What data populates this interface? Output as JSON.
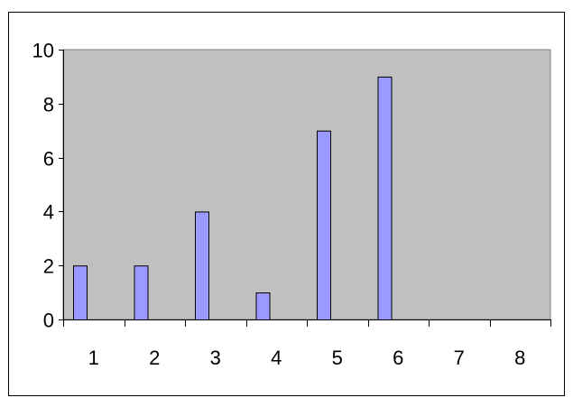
{
  "chart_data": {
    "type": "bar",
    "title": "",
    "xlabel": "",
    "ylabel": "",
    "categories": [
      "1",
      "2",
      "3",
      "4",
      "5",
      "6",
      "7",
      "8"
    ],
    "values": [
      2,
      2,
      4,
      1,
      7,
      9,
      0,
      0
    ],
    "ylim": [
      0,
      10
    ],
    "yticks": [
      "0",
      "2",
      "4",
      "6",
      "8",
      "10"
    ],
    "grid": false,
    "legend": "none",
    "colors": {
      "bar": "#9999FF",
      "plot_background": "#C0C0C0",
      "page_background": "#FFFFFF"
    }
  }
}
